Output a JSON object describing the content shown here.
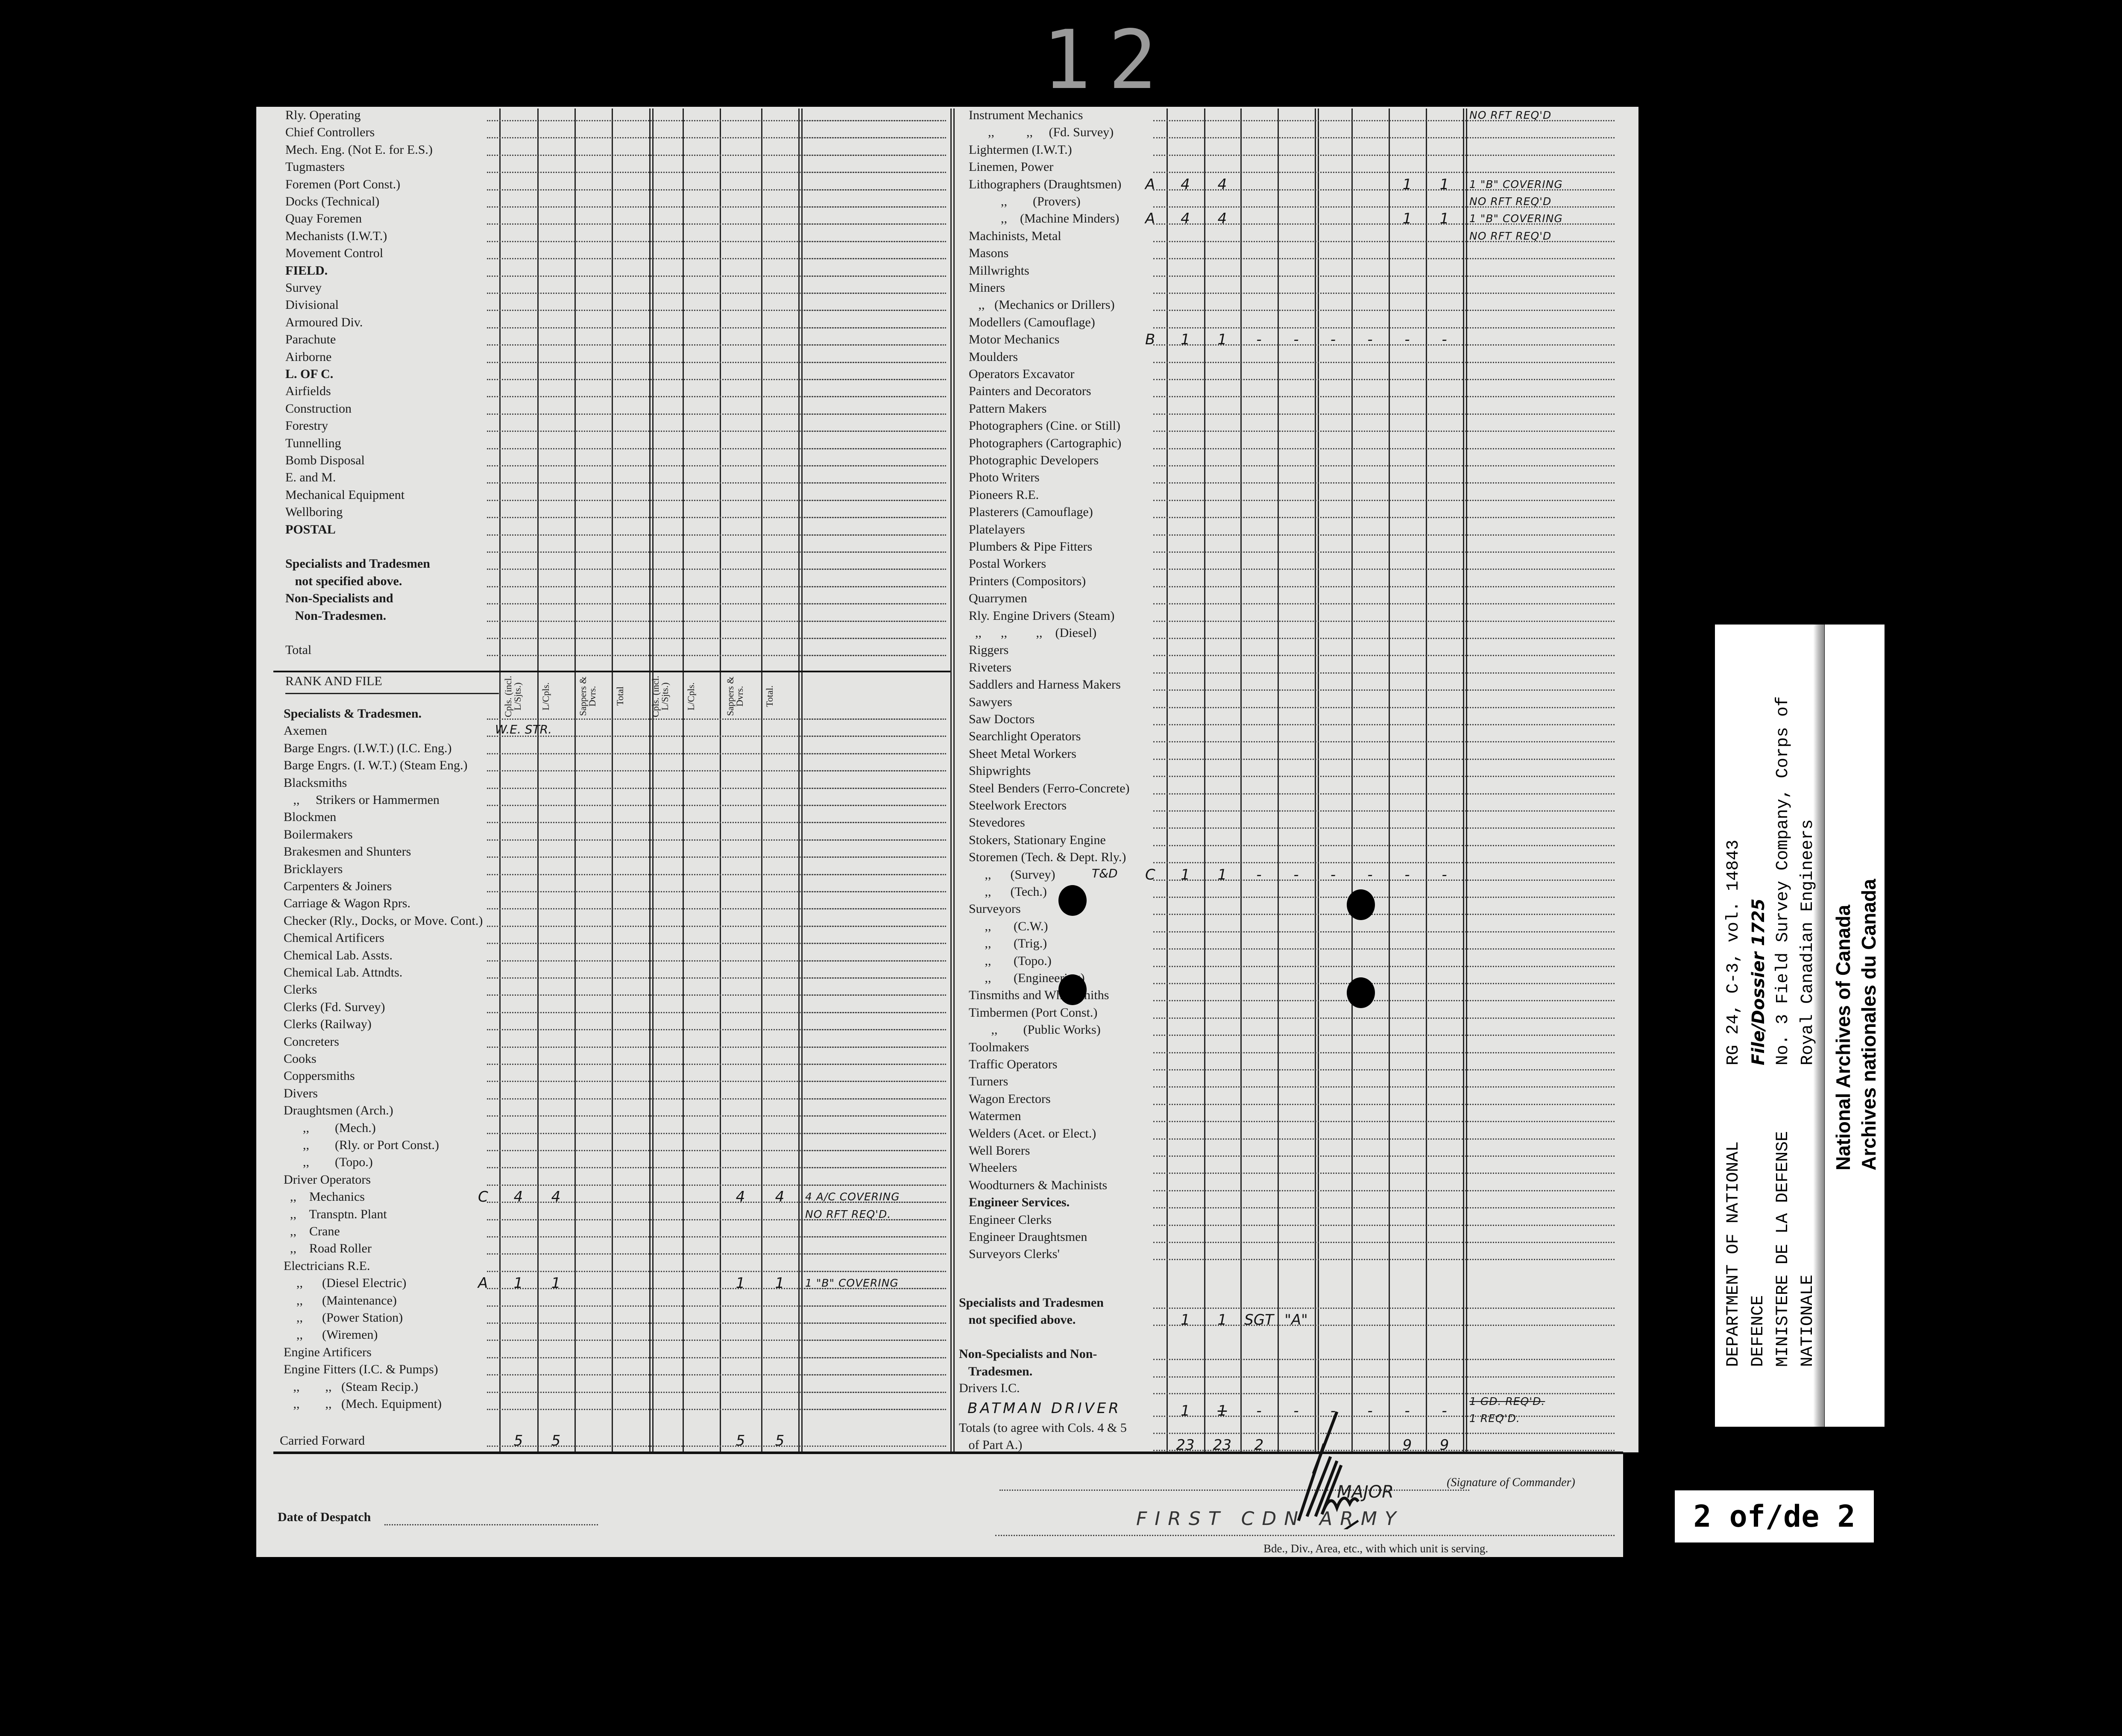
{
  "page_number": "12",
  "left_upper": {
    "rows": [
      {
        "label": "Rly. Operating"
      },
      {
        "label": "Chief Controllers"
      },
      {
        "label": "Mech. Eng. (Not E. for E.S.)"
      },
      {
        "label": "Tugmasters"
      },
      {
        "label": "Foremen (Port Const.)"
      },
      {
        "label": "Docks (Technical)"
      },
      {
        "label": "Quay Foremen"
      },
      {
        "label": "Mechanists (I.W.T.)"
      },
      {
        "label": "Movement Control"
      },
      {
        "label": "FIELD.",
        "bold": true
      },
      {
        "label": "Survey"
      },
      {
        "label": "Divisional"
      },
      {
        "label": "Armoured Div."
      },
      {
        "label": "Parachute"
      },
      {
        "label": "Airborne"
      },
      {
        "label": "L. OF C.",
        "bold": true
      },
      {
        "label": "Airfields"
      },
      {
        "label": "Construction"
      },
      {
        "label": "Forestry"
      },
      {
        "label": "Tunnelling"
      },
      {
        "label": "Bomb Disposal"
      },
      {
        "label": "E. and M."
      },
      {
        "label": "Mechanical Equipment"
      },
      {
        "label": "Wellboring"
      },
      {
        "label": "POSTAL",
        "bold": true
      },
      {
        "label": ""
      },
      {
        "label": "Specialists and Tradesmen",
        "bold": true
      },
      {
        "label": "   not specified above.",
        "bold": true
      },
      {
        "label": "Non-Specialists and",
        "bold": true
      },
      {
        "label": "   Non-Tradesmen.",
        "bold": true
      },
      {
        "label": ""
      },
      {
        "label": "Total"
      }
    ]
  },
  "rank_and_file": {
    "title": "RANK AND FILE",
    "column_headers": [
      "Cpls. (incl. L/Sjts.)",
      "L/Cpls.",
      "Sappers & Dvrs.",
      "Total",
      "Cpls. (incl. L/Sjts.)",
      "L/Cpls.",
      "Sappers & Dvrs.",
      "Total."
    ],
    "rows": [
      {
        "label": "Specialists & Tradesmen.",
        "bold": true
      },
      {
        "label": "Axemen",
        "note": "W.E. STR."
      },
      {
        "label": "Barge Engrs. (I.W.T.) (I.C. Eng.)"
      },
      {
        "label": "Barge Engrs. (I. W.T.) (Steam Eng.)"
      },
      {
        "label": "Blacksmiths"
      },
      {
        "label": "   ,,     Strikers or Hammermen"
      },
      {
        "label": "Blockmen"
      },
      {
        "label": "Boilermakers"
      },
      {
        "label": "Brakesmen and Shunters"
      },
      {
        "label": "Bricklayers"
      },
      {
        "label": "Carpenters & Joiners"
      },
      {
        "label": "Carriage & Wagon Rprs."
      },
      {
        "label": "Checker (Rly., Docks, or Move. Cont.)"
      },
      {
        "label": "Chemical Artificers"
      },
      {
        "label": "Chemical Lab. Assts."
      },
      {
        "label": "Chemical Lab. Attndts."
      },
      {
        "label": "Clerks"
      },
      {
        "label": "Clerks (Fd. Survey)"
      },
      {
        "label": "Clerks (Railway)"
      },
      {
        "label": "Concreters"
      },
      {
        "label": "Cooks"
      },
      {
        "label": "Coppersmiths"
      },
      {
        "label": "Divers"
      },
      {
        "label": "Draughtsmen (Arch.)"
      },
      {
        "label": "      ,,        (Mech.)"
      },
      {
        "label": "      ,,        (Rly. or Port Const.)"
      },
      {
        "label": "      ,,        (Topo.)"
      },
      {
        "label": "Driver Operators"
      },
      {
        "label": "  ,,    Mechanics",
        "grade": "C",
        "v": [
          "4",
          "4",
          "",
          "",
          "",
          "",
          "4",
          "4"
        ],
        "remark": "4 A/C COVERING"
      },
      {
        "label": "  ,,    Transptn. Plant",
        "remark": "NO RFT REQ'D."
      },
      {
        "label": "  ,,    Crane"
      },
      {
        "label": "  ,,    Road Roller"
      },
      {
        "label": "Electricians R.E."
      },
      {
        "label": "    ,,      (Diesel Electric)",
        "grade": "A",
        "v": [
          "1",
          "1",
          "",
          "",
          "",
          "",
          "1",
          "1"
        ],
        "remark": "1 \"B\" COVERING"
      },
      {
        "label": "    ,,      (Maintenance)"
      },
      {
        "label": "    ,,      (Power Station)"
      },
      {
        "label": "    ,,      (Wiremen)"
      },
      {
        "label": "Engine Artificers"
      },
      {
        "label": "Engine Fitters (I.C. & Pumps)"
      },
      {
        "label": "   ,,        ,,   (Steam Recip.)"
      },
      {
        "label": "   ,,        ,,   (Mech. Equipment)"
      }
    ],
    "carried_forward": {
      "label": "Carried Forward",
      "v": [
        "5",
        "5",
        "",
        "",
        "",
        "",
        "5",
        "5"
      ]
    }
  },
  "right_list": {
    "rows": [
      {
        "label": "Instrument Mechanics",
        "remark": "NO RFT REQ'D"
      },
      {
        "label": "      ,,          ,,     (Fd. Survey)"
      },
      {
        "label": "Lightermen (I.W.T.)"
      },
      {
        "label": "Linemen, Power"
      },
      {
        "label": "Lithographers (Draughtsmen)",
        "grade": "A",
        "v": [
          "4",
          "4",
          "",
          "",
          "",
          "",
          "1",
          "1"
        ],
        "remark": "1 \"B\" COVERING"
      },
      {
        "label": "          ,,        (Provers)",
        "remark": "NO RFT REQ'D"
      },
      {
        "label": "          ,,    (Machine Minders)",
        "grade": "A",
        "v": [
          "4",
          "4",
          "",
          "",
          "",
          "",
          "1",
          "1"
        ],
        "remark": "1 \"B\" COVERING"
      },
      {
        "label": "Machinists, Metal",
        "remark": "NO RFT REQ'D"
      },
      {
        "label": "Masons"
      },
      {
        "label": "Millwrights"
      },
      {
        "label": "Miners"
      },
      {
        "label": "   ,,   (Mechanics or Drillers)"
      },
      {
        "label": "Modellers (Camouflage)"
      },
      {
        "label": "Motor Mechanics",
        "grade": "B",
        "v": [
          "1",
          "1",
          "-",
          "-",
          "-",
          "-",
          "-",
          "-"
        ]
      },
      {
        "label": "Moulders"
      },
      {
        "label": "Operators Excavator"
      },
      {
        "label": "Painters and Decorators"
      },
      {
        "label": "Pattern Makers"
      },
      {
        "label": "Photographers (Cine. or Still)"
      },
      {
        "label": "Photographers (Cartographic)"
      },
      {
        "label": "Photographic Developers"
      },
      {
        "label": "Photo Writers"
      },
      {
        "label": "Pioneers R.E."
      },
      {
        "label": "Plasterers (Camouflage)"
      },
      {
        "label": "Platelayers"
      },
      {
        "label": "Plumbers & Pipe Fitters"
      },
      {
        "label": "Postal Workers"
      },
      {
        "label": "Printers (Compositors)"
      },
      {
        "label": "Quarrymen"
      },
      {
        "label": "Rly. Engine Drivers (Steam)"
      },
      {
        "label": "  ,,      ,,         ,,    (Diesel)"
      },
      {
        "label": "Riggers"
      },
      {
        "label": "Riveters"
      },
      {
        "label": "Saddlers and Harness Makers"
      },
      {
        "label": "Sawyers"
      },
      {
        "label": "Saw Doctors"
      },
      {
        "label": "Searchlight Operators"
      },
      {
        "label": "Sheet Metal Workers"
      },
      {
        "label": "Shipwrights"
      },
      {
        "label": "Steel Benders (Ferro-Concrete)"
      },
      {
        "label": "Steelwork Erectors"
      },
      {
        "label": "Stevedores"
      },
      {
        "label": "Stokers, Stationary Engine"
      },
      {
        "label": "Storemen (Tech. & Dept. Rly.)"
      },
      {
        "label": "     ,,      (Survey)",
        "note": "T&D",
        "grade": "C",
        "v": [
          "1",
          "1",
          "-",
          "-",
          "-",
          "-",
          "-",
          "-"
        ]
      },
      {
        "label": "     ,,      (Tech.)"
      },
      {
        "label": "Surveyors"
      },
      {
        "label": "     ,,       (C.W.)"
      },
      {
        "label": "     ,,       (Trig.)"
      },
      {
        "label": "     ,,       (Topo.)"
      },
      {
        "label": "     ,,       (Engineering)"
      },
      {
        "label": "Tinsmiths and Whitesmiths"
      },
      {
        "label": "Timbermen (Port Const.)"
      },
      {
        "label": "       ,,        (Public Works)"
      },
      {
        "label": "Toolmakers"
      },
      {
        "label": "Traffic Operators"
      },
      {
        "label": "Turners"
      },
      {
        "label": "Wagon Erectors"
      },
      {
        "label": "Watermen"
      },
      {
        "label": "Welders (Acet. or Elect.)"
      },
      {
        "label": "Well Borers"
      },
      {
        "label": "Wheelers"
      },
      {
        "label": "Woodturners & Machinists"
      },
      {
        "label": "Engineer Services.",
        "bold": true
      },
      {
        "label": "Engineer Clerks"
      },
      {
        "label": "Engineer Draughtsmen"
      },
      {
        "label": "Surveyors Clerks'"
      }
    ]
  },
  "right_lower": {
    "rows": [
      {
        "label": "Specialists and Tradesmen",
        "bold": true
      },
      {
        "label": "   not specified above.",
        "bold": true,
        "v": [
          "1",
          "1",
          "SGT",
          "\"A\"",
          "",
          "",
          "",
          ""
        ]
      },
      {
        "label": "Non-Specialists and Non-",
        "bold": true
      },
      {
        "label": "   Tradesmen.",
        "bold": true
      },
      {
        "label": "Drivers I.C."
      },
      {
        "label": "",
        "note": "BATMAN DRIVER",
        "v": [
          "1",
          "1",
          "-",
          "-",
          "-",
          "-",
          "-",
          "-"
        ],
        "remark": "1 GD. REQ'D.",
        "remark2": "1 REQ'D."
      },
      {
        "label": "Totals (to agree with Cols. 4 & 5"
      },
      {
        "label": "   of Part A.)",
        "v": [
          "23",
          "23",
          "2",
          "",
          "",
          "",
          "9",
          "9"
        ]
      }
    ]
  },
  "footer": {
    "date_of_despatch_label": "Date of Despatch",
    "signature_label": "(Signature of Commander)",
    "signature_rank": "MAJOR",
    "formation_value": "FIRST CDN ARMY",
    "formation_label": "Bde., Div., Area, etc., with which unit is serving."
  },
  "archive_label": {
    "department_lines": [
      "DEPARTMENT OF NATIONAL",
      "DEFENCE",
      "MINISTERE DE LA DEFENSE",
      "NATIONALE"
    ],
    "reference_lines": [
      "RG 24, C-3, vol. 14843",
      "File/Dossier 1725",
      "No. 3 Field Survey Company, Corps of",
      "Royal Canadian Engineers"
    ],
    "archives_lines": [
      "National Archives of Canada",
      "Archives nationales du Canada"
    ]
  },
  "reel_label": "2 of/de 2"
}
